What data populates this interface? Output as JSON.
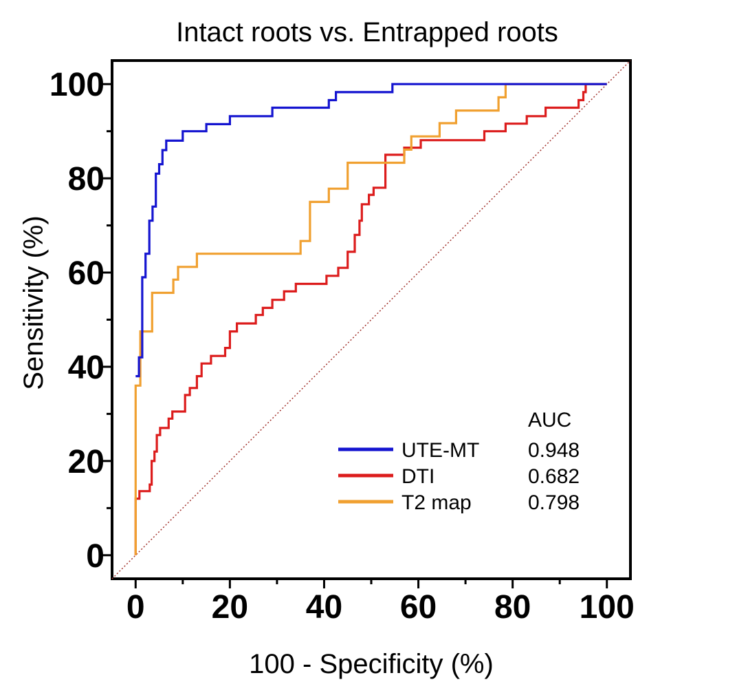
{
  "chart_data": {
    "type": "line",
    "title": "Intact roots vs. Entrapped roots",
    "xlabel": "100 - Specificity (%)",
    "ylabel": "Sensitivity (%)",
    "xlim": [
      -5,
      105
    ],
    "ylim": [
      -5,
      105
    ],
    "xticks": [
      0,
      20,
      40,
      60,
      80,
      100
    ],
    "yticks": [
      0,
      20,
      40,
      60,
      80,
      100
    ],
    "xtick_labels": [
      "0",
      "20",
      "40",
      "60",
      "80",
      "100"
    ],
    "ytick_labels": [
      "0",
      "20",
      "40",
      "60",
      "80",
      "100"
    ],
    "minor_ticks_every": 10,
    "legend_header": "AUC",
    "legend_position": "bottom-right",
    "reference_line": {
      "from": [
        -5,
        -5
      ],
      "to": [
        105,
        105
      ],
      "color": "#a0302a",
      "style": "dotted"
    },
    "series": [
      {
        "name": "UTE-MT",
        "auc": "0.948",
        "color": "#1414d0",
        "points": [
          [
            0,
            38
          ],
          [
            0.7,
            38
          ],
          [
            0.7,
            42
          ],
          [
            1.4,
            42
          ],
          [
            1.4,
            59
          ],
          [
            2.1,
            59
          ],
          [
            2.1,
            64
          ],
          [
            2.9,
            64
          ],
          [
            2.9,
            71
          ],
          [
            3.6,
            71
          ],
          [
            3.6,
            74
          ],
          [
            4.3,
            74
          ],
          [
            4.3,
            81
          ],
          [
            5,
            81
          ],
          [
            5,
            83
          ],
          [
            5.7,
            83
          ],
          [
            5.7,
            86
          ],
          [
            6.5,
            86
          ],
          [
            6.5,
            88
          ],
          [
            10,
            88
          ],
          [
            10,
            90
          ],
          [
            15,
            90
          ],
          [
            15,
            91.5
          ],
          [
            20,
            91.5
          ],
          [
            20,
            93.2
          ],
          [
            29,
            93.2
          ],
          [
            29,
            95
          ],
          [
            41,
            95
          ],
          [
            41,
            96.6
          ],
          [
            42.5,
            96.6
          ],
          [
            42.5,
            98.3
          ],
          [
            54.5,
            98.3
          ],
          [
            54.5,
            100
          ],
          [
            78.5,
            100
          ],
          [
            100,
            100
          ]
        ]
      },
      {
        "name": "DTI",
        "auc": "0.682",
        "color": "#dc1c1c",
        "points": [
          [
            0,
            0
          ],
          [
            0,
            12
          ],
          [
            0.8,
            12
          ],
          [
            0.8,
            13.6
          ],
          [
            3,
            13.6
          ],
          [
            3,
            15
          ],
          [
            3.4,
            15
          ],
          [
            3.4,
            20
          ],
          [
            4,
            20
          ],
          [
            4,
            22
          ],
          [
            4.5,
            22
          ],
          [
            4.5,
            25.5
          ],
          [
            5.2,
            25.5
          ],
          [
            5.2,
            27
          ],
          [
            7,
            27
          ],
          [
            7,
            29
          ],
          [
            7.8,
            29
          ],
          [
            7.8,
            30.5
          ],
          [
            10.5,
            30.5
          ],
          [
            10.5,
            34
          ],
          [
            11.5,
            34
          ],
          [
            11.5,
            35.5
          ],
          [
            13,
            35.5
          ],
          [
            13,
            38
          ],
          [
            14,
            38
          ],
          [
            14,
            40.7
          ],
          [
            16,
            40.7
          ],
          [
            16,
            42.3
          ],
          [
            19,
            42.3
          ],
          [
            19,
            44
          ],
          [
            20,
            44
          ],
          [
            20,
            47.5
          ],
          [
            21.5,
            47.5
          ],
          [
            21.5,
            49.2
          ],
          [
            25.5,
            49.2
          ],
          [
            25.5,
            51
          ],
          [
            27,
            51
          ],
          [
            27,
            52.5
          ],
          [
            29,
            52.5
          ],
          [
            29,
            54.2
          ],
          [
            31.5,
            54.2
          ],
          [
            31.5,
            56
          ],
          [
            34,
            56
          ],
          [
            34,
            57.6
          ],
          [
            40.5,
            57.6
          ],
          [
            40.5,
            59.3
          ],
          [
            43,
            59.3
          ],
          [
            43,
            61
          ],
          [
            45,
            61
          ],
          [
            45,
            64.4
          ],
          [
            46.5,
            64.4
          ],
          [
            46.5,
            68
          ],
          [
            47.5,
            68
          ],
          [
            47.5,
            71
          ],
          [
            48,
            71
          ],
          [
            48,
            74.5
          ],
          [
            49.5,
            74.5
          ],
          [
            49.5,
            76.5
          ],
          [
            50.5,
            76.5
          ],
          [
            50.5,
            78
          ],
          [
            53,
            78
          ],
          [
            53,
            85
          ],
          [
            57,
            85
          ],
          [
            57,
            86.5
          ],
          [
            60.5,
            86.5
          ],
          [
            60.5,
            88.1
          ],
          [
            74,
            88.1
          ],
          [
            74,
            90
          ],
          [
            78.5,
            90
          ],
          [
            78.5,
            91.6
          ],
          [
            83,
            91.6
          ],
          [
            83,
            93.2
          ],
          [
            87,
            93.2
          ],
          [
            87,
            95
          ],
          [
            94,
            95
          ],
          [
            94,
            96.6
          ],
          [
            95,
            96.6
          ],
          [
            95,
            98.3
          ],
          [
            95.5,
            98.3
          ],
          [
            95.5,
            100
          ],
          [
            100,
            100
          ]
        ]
      },
      {
        "name": "T2 map",
        "auc": "0.798",
        "color": "#f0a030",
        "points": [
          [
            0,
            0
          ],
          [
            0,
            36
          ],
          [
            1,
            36
          ],
          [
            1,
            47.5
          ],
          [
            3.5,
            47.5
          ],
          [
            3.5,
            55.7
          ],
          [
            8,
            55.7
          ],
          [
            8,
            58.5
          ],
          [
            9,
            58.5
          ],
          [
            9,
            61.2
          ],
          [
            13,
            61.2
          ],
          [
            13,
            64
          ],
          [
            35,
            64
          ],
          [
            35,
            66.7
          ],
          [
            37,
            66.7
          ],
          [
            37,
            75
          ],
          [
            41,
            75
          ],
          [
            41,
            77.8
          ],
          [
            45,
            77.8
          ],
          [
            45,
            83.3
          ],
          [
            57,
            83.3
          ],
          [
            57,
            86.1
          ],
          [
            58.5,
            86.1
          ],
          [
            58.5,
            88.9
          ],
          [
            64.5,
            88.9
          ],
          [
            64.5,
            91.7
          ],
          [
            68,
            91.7
          ],
          [
            68,
            94.4
          ],
          [
            77,
            94.4
          ],
          [
            77,
            97.2
          ],
          [
            78.5,
            97.2
          ],
          [
            78.5,
            100
          ],
          [
            100,
            100
          ]
        ]
      }
    ]
  }
}
